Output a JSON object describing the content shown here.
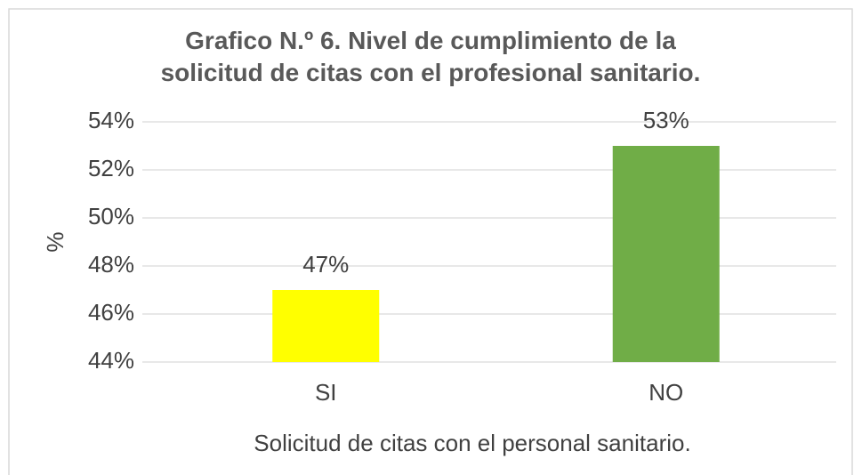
{
  "chart_data": {
    "type": "bar",
    "title": "Grafico N.º 6. Nivel de cumplimiento de la\nsolicitud de citas con el profesional sanitario.",
    "y_label": "%",
    "x_label": "Solicitud de citas con el personal sanitario.",
    "categories": [
      "SI",
      "NO"
    ],
    "values": [
      47,
      53
    ],
    "value_labels": [
      "47%",
      "53%"
    ],
    "colors": [
      "#ffff00",
      "#70ad47"
    ],
    "ylim": [
      44,
      54
    ],
    "yticks": [
      {
        "value": 44,
        "label": "44%"
      },
      {
        "value": 46,
        "label": "46%"
      },
      {
        "value": 48,
        "label": "48%"
      },
      {
        "value": 50,
        "label": "50%"
      },
      {
        "value": 52,
        "label": "52%"
      },
      {
        "value": 54,
        "label": "54%"
      }
    ],
    "grid": true
  }
}
